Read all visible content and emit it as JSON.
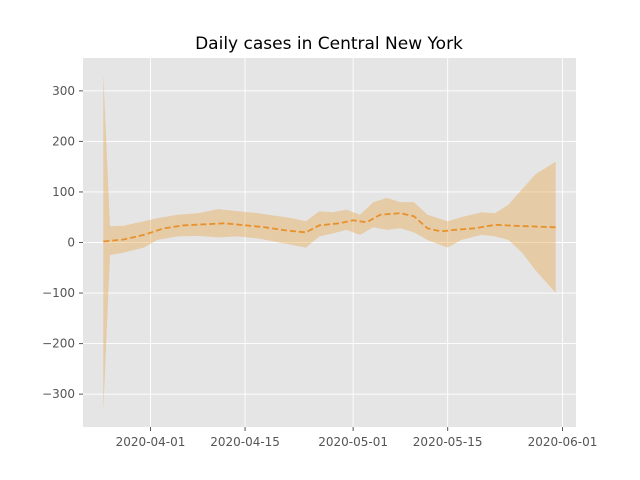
{
  "chart_data": {
    "type": "line",
    "title": "Daily cases in Central New York",
    "xlabel": "",
    "ylabel": "",
    "x_axis": "date",
    "xlim": [
      "2020-03-22",
      "2020-06-03"
    ],
    "ylim": [
      -365,
      365
    ],
    "grid": true,
    "legend": "none",
    "x_ticks": [
      "2020-04-01",
      "2020-04-15",
      "2020-05-01",
      "2020-05-15",
      "2020-06-01"
    ],
    "y_ticks": [
      300,
      200,
      100,
      0,
      -100,
      -200,
      -300
    ],
    "y_tick_labels": [
      "300",
      "200",
      "100",
      "0",
      "−100",
      "−200",
      "−300"
    ],
    "colors": {
      "background": "#e5e5e5",
      "grid": "#ffffff",
      "line": "#e8912a",
      "band": "#e8a44a",
      "band_opacity": 0.4
    },
    "band": [
      {
        "x": "2020-03-25",
        "lower": -335,
        "upper": 333
      },
      {
        "x": "2020-03-26",
        "lower": -25,
        "upper": 32
      },
      {
        "x": "2020-03-28",
        "lower": -20,
        "upper": 33
      },
      {
        "x": "2020-03-31",
        "lower": -10,
        "upper": 42
      },
      {
        "x": "2020-04-02",
        "lower": 5,
        "upper": 48
      },
      {
        "x": "2020-04-05",
        "lower": 12,
        "upper": 55
      },
      {
        "x": "2020-04-08",
        "lower": 13,
        "upper": 58
      },
      {
        "x": "2020-04-11",
        "lower": 10,
        "upper": 66
      },
      {
        "x": "2020-04-14",
        "lower": 12,
        "upper": 62
      },
      {
        "x": "2020-04-17",
        "lower": 8,
        "upper": 58
      },
      {
        "x": "2020-04-20",
        "lower": 0,
        "upper": 52
      },
      {
        "x": "2020-04-22",
        "lower": -5,
        "upper": 48
      },
      {
        "x": "2020-04-24",
        "lower": -10,
        "upper": 42
      },
      {
        "x": "2020-04-26",
        "lower": 12,
        "upper": 62
      },
      {
        "x": "2020-04-28",
        "lower": 18,
        "upper": 60
      },
      {
        "x": "2020-04-30",
        "lower": 25,
        "upper": 65
      },
      {
        "x": "2020-05-02",
        "lower": 15,
        "upper": 55
      },
      {
        "x": "2020-05-04",
        "lower": 30,
        "upper": 80
      },
      {
        "x": "2020-05-06",
        "lower": 25,
        "upper": 88
      },
      {
        "x": "2020-05-08",
        "lower": 28,
        "upper": 80
      },
      {
        "x": "2020-05-10",
        "lower": 20,
        "upper": 80
      },
      {
        "x": "2020-05-12",
        "lower": 5,
        "upper": 55
      },
      {
        "x": "2020-05-15",
        "lower": -10,
        "upper": 42
      },
      {
        "x": "2020-05-17",
        "lower": 5,
        "upper": 50
      },
      {
        "x": "2020-05-20",
        "lower": 15,
        "upper": 60
      },
      {
        "x": "2020-05-22",
        "lower": 12,
        "upper": 58
      },
      {
        "x": "2020-05-24",
        "lower": 5,
        "upper": 75
      },
      {
        "x": "2020-05-26",
        "lower": -20,
        "upper": 105
      },
      {
        "x": "2020-05-28",
        "lower": -55,
        "upper": 135
      },
      {
        "x": "2020-05-31",
        "lower": -100,
        "upper": 160
      }
    ],
    "series": [
      {
        "style": "dashed",
        "x": [
          "2020-03-25",
          "2020-03-28",
          "2020-03-31",
          "2020-04-03",
          "2020-04-06",
          "2020-04-09",
          "2020-04-12",
          "2020-04-15",
          "2020-04-18",
          "2020-04-21",
          "2020-04-24",
          "2020-04-26",
          "2020-04-29",
          "2020-05-01",
          "2020-05-03",
          "2020-05-05",
          "2020-05-08",
          "2020-05-10",
          "2020-05-12",
          "2020-05-14",
          "2020-05-16",
          "2020-05-19",
          "2020-05-22",
          "2020-05-25",
          "2020-05-31"
        ],
        "values": [
          2,
          6,
          15,
          28,
          34,
          36,
          38,
          34,
          30,
          24,
          20,
          34,
          38,
          44,
          40,
          55,
          58,
          52,
          28,
          22,
          25,
          28,
          35,
          33,
          30
        ]
      }
    ]
  }
}
